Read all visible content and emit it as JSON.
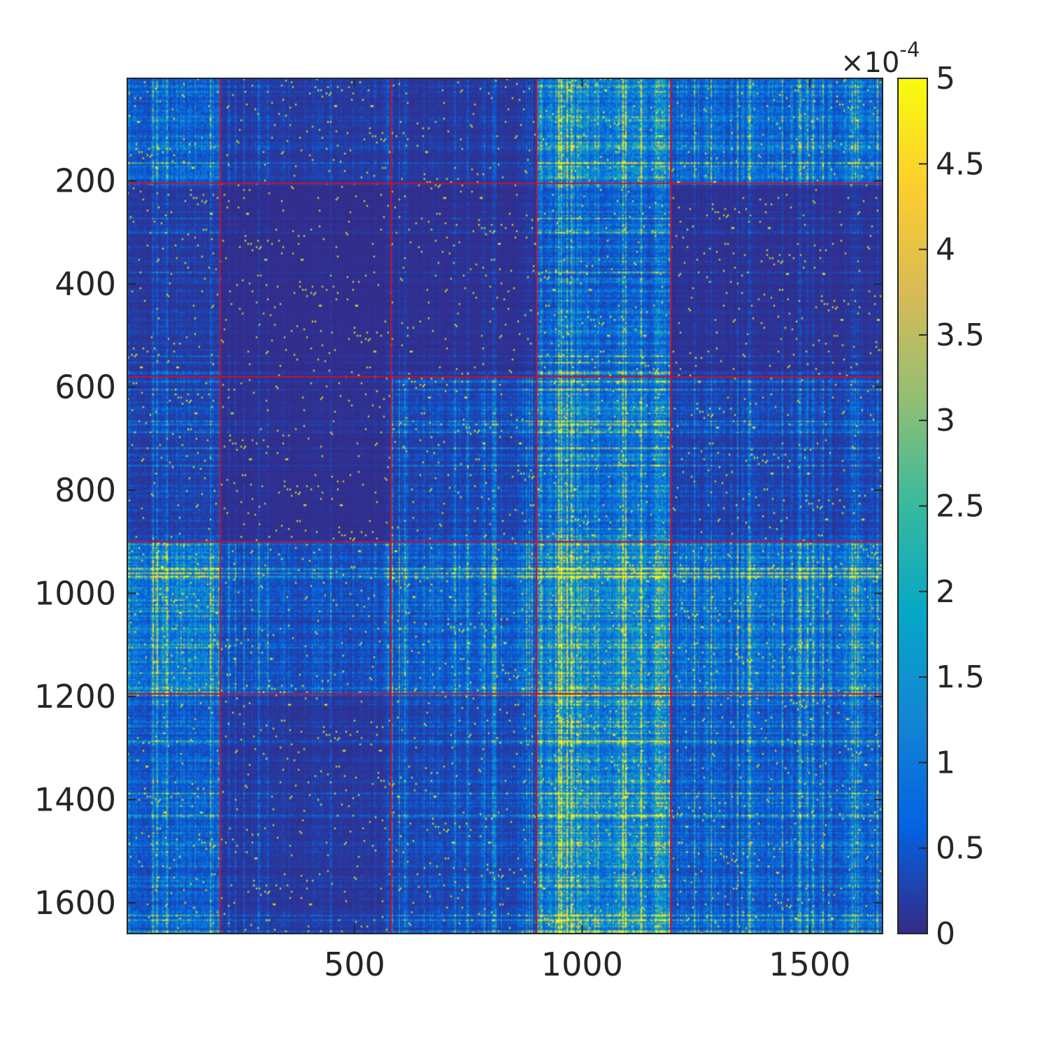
{
  "chart_data": {
    "type": "heatmap",
    "title": "",
    "xlabel": "",
    "ylabel": "",
    "matrix_size": 1660,
    "xlim": [
      1,
      1660
    ],
    "ylim": [
      1,
      1660
    ],
    "y_direction": "reversed",
    "x_ticks": [
      500,
      1000,
      1500
    ],
    "x_tick_labels": [
      "500",
      "1000",
      "1500"
    ],
    "y_ticks": [
      200,
      400,
      600,
      800,
      1000,
      1200,
      1400,
      1600
    ],
    "y_tick_labels": [
      "200",
      "400",
      "600",
      "800",
      "1000",
      "1200",
      "1400",
      "1600"
    ],
    "colorbar": {
      "min": 0,
      "max": 5,
      "ticks": [
        0,
        0.5,
        1,
        1.5,
        2,
        2.5,
        3,
        3.5,
        4,
        4.5,
        5
      ],
      "tick_labels": [
        "0",
        "0.5",
        "1",
        "1.5",
        "2",
        "2.5",
        "3",
        "3.5",
        "4",
        "4.5",
        "5"
      ],
      "exponent_prefix": "×10",
      "exponent": "-4",
      "colormap": "parula",
      "colormap_stops": [
        "#352a87",
        "#0363e1",
        "#1485d4",
        "#06a7c6",
        "#38b99e",
        "#92bf73",
        "#d9ba56",
        "#fcce2e",
        "#f9fb0e"
      ]
    },
    "block_boundaries": [
      205,
      580,
      900,
      1195
    ],
    "block_boundary_color": "#c8102e",
    "blocks_note_levels": [
      [
        0.85,
        0.25,
        0.2,
        1.6,
        0.95
      ],
      [
        0.25,
        0.06,
        0.1,
        0.9,
        0.12
      ],
      [
        0.35,
        0.08,
        0.4,
        1.2,
        0.35
      ],
      [
        1.6,
        0.6,
        0.9,
        2.0,
        1.2
      ],
      [
        0.8,
        0.2,
        0.45,
        1.7,
        0.75
      ]
    ]
  }
}
